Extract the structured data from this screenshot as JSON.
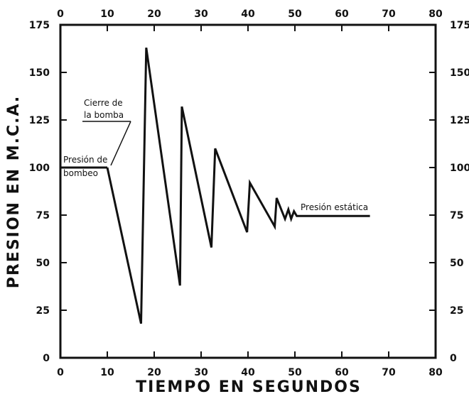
{
  "chart_data": {
    "type": "line",
    "title": "",
    "xlabel": "TIEMPO EN SEGUNDOS",
    "ylabel": "PRESION EN M.C.A.",
    "xlim": [
      0,
      80
    ],
    "ylim": [
      0,
      175
    ],
    "x_ticks": [
      0,
      10,
      20,
      30,
      40,
      50,
      60,
      70,
      80
    ],
    "y_ticks": [
      0,
      25,
      50,
      75,
      100,
      125,
      150,
      175
    ],
    "x_ticks_top": true,
    "y_ticks_right": true,
    "grid": false,
    "line_color": "#111111",
    "series": [
      {
        "points": [
          [
            10,
            100
          ],
          [
            17.2,
            18
          ],
          [
            18.3,
            163
          ],
          [
            25.5,
            38
          ],
          [
            25.9,
            132
          ],
          [
            32.2,
            58
          ],
          [
            33.0,
            110
          ],
          [
            39.8,
            66
          ],
          [
            40.4,
            92
          ],
          [
            45.7,
            69
          ],
          [
            46.1,
            84
          ],
          [
            47.9,
            73
          ],
          [
            48.6,
            78
          ],
          [
            49.2,
            73
          ],
          [
            49.8,
            77
          ],
          [
            50.4,
            74.5
          ],
          [
            66,
            74.5
          ]
        ]
      }
    ],
    "annotations": [
      {
        "lines": [
          "Presión de",
          "bombeo"
        ]
      },
      {
        "lines": [
          "Cierre de",
          "la bomba"
        ]
      },
      {
        "lines": [
          "Presión estática"
        ]
      }
    ]
  }
}
